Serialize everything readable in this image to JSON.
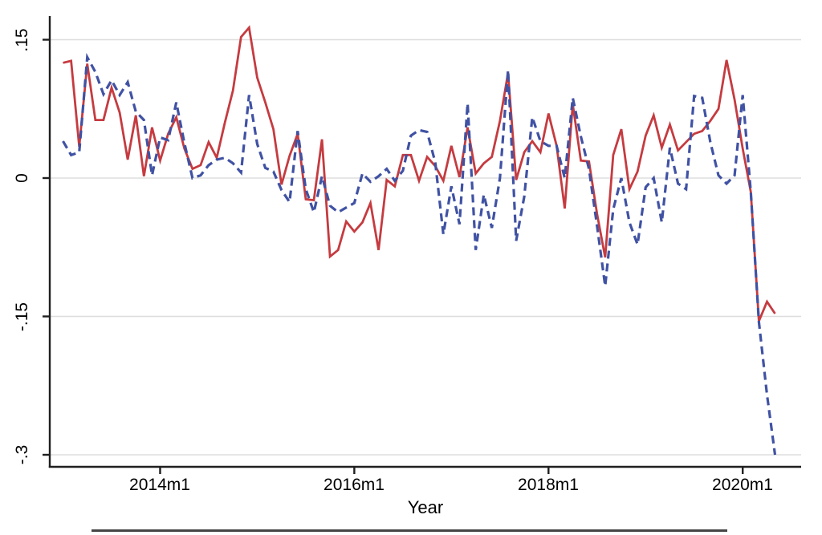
{
  "colors": {
    "series_red": "#c53b40",
    "series_blue": "#4052a3",
    "gridline": "#dddddd",
    "axis": "#1f1f1f",
    "legend_border": "#454545",
    "background": "#ffffff"
  },
  "chart_data": {
    "type": "line",
    "title": "",
    "xlabel": "Year",
    "ylabel": "",
    "grid": "horizontal",
    "partial_legend_border": "top edge of legend box visible, cut off at bottom of image",
    "x_axis": {
      "tick_labels": [
        "2014m1",
        "2016m1",
        "2018m1",
        "2020m1"
      ],
      "tick_month_indices": [
        12,
        36,
        60,
        84
      ]
    },
    "y_axis": {
      "tick_labels": [
        ".15",
        "0",
        "-.15",
        "-.3"
      ],
      "tick_values": [
        0.15,
        0,
        -0.15,
        -0.3
      ],
      "ylim": [
        -0.31,
        0.175
      ]
    },
    "x": [
      "2013m1",
      "2013m2",
      "2013m3",
      "2013m4",
      "2013m5",
      "2013m6",
      "2013m7",
      "2013m8",
      "2013m9",
      "2013m10",
      "2013m11",
      "2013m12",
      "2014m1",
      "2014m2",
      "2014m3",
      "2014m4",
      "2014m5",
      "2014m6",
      "2014m7",
      "2014m8",
      "2014m9",
      "2014m10",
      "2014m11",
      "2014m12",
      "2015m1",
      "2015m2",
      "2015m3",
      "2015m4",
      "2015m5",
      "2015m6",
      "2015m7",
      "2015m8",
      "2015m9",
      "2015m10",
      "2015m11",
      "2015m12",
      "2016m1",
      "2016m2",
      "2016m3",
      "2016m4",
      "2016m5",
      "2016m6",
      "2016m7",
      "2016m8",
      "2016m9",
      "2016m10",
      "2016m11",
      "2016m12",
      "2017m1",
      "2017m2",
      "2017m3",
      "2017m4",
      "2017m5",
      "2017m6",
      "2017m7",
      "2017m8",
      "2017m9",
      "2017m10",
      "2017m11",
      "2017m12",
      "2018m1",
      "2018m2",
      "2018m3",
      "2018m4",
      "2018m5",
      "2018m6",
      "2018m7",
      "2018m8",
      "2018m9",
      "2018m10",
      "2018m11",
      "2018m12",
      "2019m1",
      "2019m2",
      "2019m3",
      "2019m4",
      "2019m5",
      "2019m6",
      "2019m7",
      "2019m8",
      "2019m9",
      "2019m10",
      "2019m11",
      "2019m12",
      "2020m1",
      "2020m2",
      "2020m3",
      "2020m4",
      "2020m5"
    ],
    "series": [
      {
        "name": "red_solid",
        "line_style": "solid",
        "color": "#c53b40",
        "values": [
          0.125,
          0.127,
          0.034,
          0.124,
          0.063,
          0.063,
          0.098,
          0.071,
          0.02,
          0.068,
          0.002,
          0.055,
          0.019,
          0.048,
          0.066,
          0.032,
          0.01,
          0.014,
          0.039,
          0.022,
          0.06,
          0.095,
          0.153,
          0.163,
          0.109,
          0.082,
          0.053,
          -0.007,
          0.024,
          0.048,
          -0.023,
          -0.024,
          0.042,
          -0.085,
          -0.078,
          -0.047,
          -0.058,
          -0.048,
          -0.027,
          -0.078,
          -0.002,
          -0.009,
          0.025,
          0.025,
          -0.003,
          0.023,
          0.013,
          -0.003,
          0.035,
          0.001,
          0.055,
          0.005,
          0.016,
          0.023,
          0.062,
          0.114,
          -0.002,
          0.028,
          0.04,
          0.028,
          0.07,
          0.035,
          -0.033,
          0.08,
          0.019,
          0.018,
          -0.039,
          -0.086,
          0.025,
          0.053,
          -0.012,
          0.007,
          0.046,
          0.068,
          0.033,
          0.058,
          0.03,
          0.039,
          0.048,
          0.051,
          0.062,
          0.075,
          0.128,
          0.085,
          0.032,
          -0.015,
          -0.155,
          -0.134,
          -0.147
        ]
      },
      {
        "name": "blue_dashed",
        "line_style": "dashed",
        "color": "#4052a3",
        "values": [
          0.04,
          0.025,
          0.028,
          0.131,
          0.115,
          0.091,
          0.106,
          0.09,
          0.104,
          0.072,
          0.063,
          0.003,
          0.044,
          0.041,
          0.082,
          0.038,
          0.0,
          0.003,
          0.014,
          0.02,
          0.022,
          0.016,
          0.006,
          0.09,
          0.037,
          0.011,
          0.007,
          -0.013,
          -0.026,
          0.051,
          -0.012,
          -0.037,
          0.002,
          -0.03,
          -0.037,
          -0.032,
          -0.027,
          0.005,
          -0.004,
          0.002,
          0.01,
          -0.003,
          0.008,
          0.046,
          0.052,
          0.05,
          0.017,
          -0.061,
          -0.009,
          -0.05,
          0.081,
          -0.078,
          -0.018,
          -0.054,
          0.0,
          0.117,
          -0.068,
          -0.02,
          0.066,
          0.04,
          0.035,
          0.035,
          0.0,
          0.087,
          0.045,
          0.01,
          -0.052,
          -0.117,
          -0.034,
          0.0,
          -0.048,
          -0.072,
          -0.01,
          0.0,
          -0.048,
          0.033,
          -0.006,
          -0.012,
          0.089,
          0.087,
          0.039,
          0.003,
          -0.006,
          0.003,
          0.09,
          -0.015,
          -0.156,
          -0.235,
          -0.3
        ]
      }
    ]
  }
}
